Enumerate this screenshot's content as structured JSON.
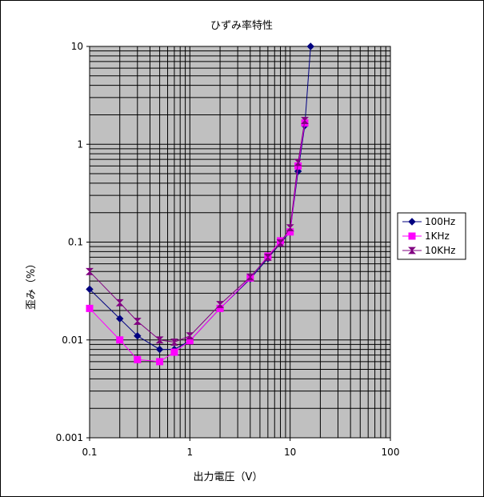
{
  "chart_data": {
    "type": "line",
    "title": "ひずみ率特性",
    "xlabel": "出力電圧（V）",
    "ylabel": "歪み（%）",
    "x_scale": "log",
    "y_scale": "log",
    "xlim": [
      0.1,
      100
    ],
    "ylim": [
      0.001,
      10
    ],
    "x_ticks": [
      "0.1",
      "1",
      "10",
      "100"
    ],
    "y_ticks": [
      "10",
      "1",
      "0.1",
      "0.01",
      "0.001"
    ],
    "grid": true,
    "legend_position": "right",
    "series": [
      {
        "name": "100Hz",
        "color": "#000080",
        "marker": "diamond",
        "points": [
          [
            0.1,
            0.033
          ],
          [
            0.2,
            0.0165
          ],
          [
            0.3,
            0.011
          ],
          [
            0.5,
            0.008
          ],
          [
            0.7,
            0.008
          ],
          [
            1,
            0.0098
          ],
          [
            2,
            0.021
          ],
          [
            4,
            0.042
          ],
          [
            6,
            0.068
          ],
          [
            8,
            0.097
          ],
          [
            10,
            0.128
          ],
          [
            12,
            0.53
          ],
          [
            14,
            1.55
          ],
          [
            16,
            10
          ]
        ]
      },
      {
        "name": "1KHz",
        "color": "#ff00ff",
        "marker": "square",
        "points": [
          [
            0.1,
            0.021
          ],
          [
            0.2,
            0.01
          ],
          [
            0.3,
            0.0063
          ],
          [
            0.5,
            0.006
          ],
          [
            0.7,
            0.0075
          ],
          [
            1,
            0.0098
          ],
          [
            2,
            0.021
          ],
          [
            4,
            0.043
          ],
          [
            6,
            0.072
          ],
          [
            8,
            0.103
          ],
          [
            10,
            0.127
          ],
          [
            12,
            0.6
          ],
          [
            14,
            1.65
          ]
        ]
      },
      {
        "name": "10KHz",
        "color": "#800080",
        "marker": "hourglass",
        "points": [
          [
            0.1,
            0.05
          ],
          [
            0.2,
            0.024
          ],
          [
            0.3,
            0.0155
          ],
          [
            0.5,
            0.01
          ],
          [
            0.7,
            0.0095
          ],
          [
            1,
            0.011
          ],
          [
            2,
            0.023
          ],
          [
            4,
            0.044
          ],
          [
            6,
            0.07
          ],
          [
            8,
            0.098
          ],
          [
            10,
            0.14
          ],
          [
            12,
            0.65
          ],
          [
            14,
            1.75
          ]
        ]
      }
    ]
  }
}
